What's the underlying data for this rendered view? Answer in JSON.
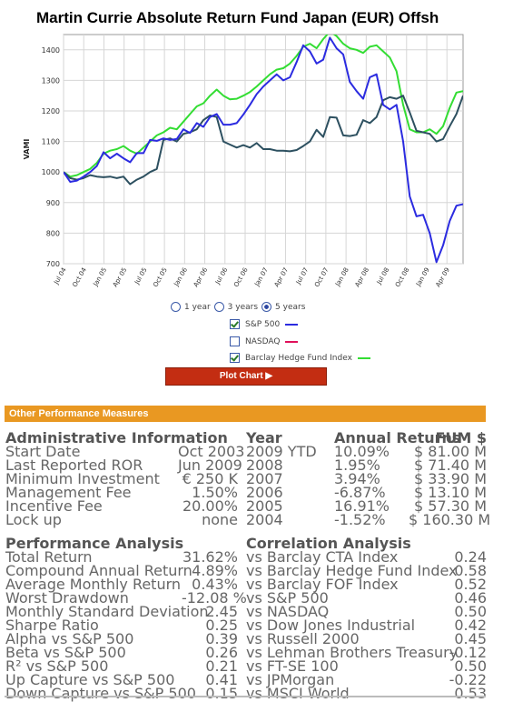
{
  "title": "Martin Currie Absolute Return Fund Japan (EUR) Offsh",
  "chart_data": {
    "type": "line",
    "ylabel": "VAMI",
    "ylim": [
      700,
      1450
    ],
    "yticks": [
      700,
      800,
      900,
      1000,
      1100,
      1200,
      1300,
      1400
    ],
    "xlabels": [
      "Jul 04",
      "Oct 04",
      "Jan 05",
      "Apr 05",
      "Jul 05",
      "Oct 05",
      "Jan 06",
      "Apr 06",
      "Jul 06",
      "Oct 06",
      "Jan 07",
      "Apr 07",
      "Jul 07",
      "Oct 07",
      "Jan 08",
      "Apr 08",
      "Jul 08",
      "Oct 08",
      "Jan 09",
      "Apr 09"
    ],
    "grid": true,
    "series": [
      {
        "name": "S&P 500",
        "color": "#2b2be0",
        "values": [
          1000,
          968,
          972,
          985,
          1000,
          1020,
          1065,
          1045,
          1060,
          1045,
          1032,
          1062,
          1062,
          1105,
          1102,
          1110,
          1105,
          1108,
          1140,
          1128,
          1160,
          1148,
          1180,
          1190,
          1155,
          1155,
          1160,
          1188,
          1220,
          1255,
          1280,
          1300,
          1320,
          1300,
          1310,
          1360,
          1415,
          1395,
          1355,
          1368,
          1440,
          1405,
          1385,
          1295,
          1265,
          1240,
          1310,
          1320,
          1220,
          1205,
          1220,
          1100,
          920,
          855,
          860,
          800,
          705,
          760,
          840,
          890,
          895
        ]
      },
      {
        "name": "Barclay Hedge Fund Index",
        "color": "#33dd33",
        "values": [
          1000,
          985,
          990,
          1000,
          1010,
          1030,
          1060,
          1070,
          1075,
          1085,
          1070,
          1060,
          1080,
          1100,
          1120,
          1130,
          1145,
          1140,
          1165,
          1190,
          1215,
          1225,
          1250,
          1270,
          1250,
          1238,
          1240,
          1250,
          1262,
          1280,
          1300,
          1320,
          1335,
          1340,
          1355,
          1380,
          1410,
          1420,
          1405,
          1435,
          1460,
          1445,
          1420,
          1405,
          1400,
          1390,
          1410,
          1415,
          1395,
          1375,
          1330,
          1220,
          1140,
          1130,
          1130,
          1140,
          1125,
          1150,
          1210,
          1260,
          1265
        ]
      },
      {
        "name": "Martin Currie Absolute Return Fund Japan (EUR) Offsh",
        "color": "#2d5060",
        "values": [
          1000,
          980,
          975,
          980,
          990,
          985,
          983,
          985,
          980,
          985,
          960,
          975,
          985,
          1000,
          1010,
          1105,
          1110,
          1100,
          1125,
          1130,
          1140,
          1170,
          1185,
          1180,
          1100,
          1090,
          1080,
          1088,
          1080,
          1095,
          1075,
          1075,
          1070,
          1070,
          1068,
          1072,
          1085,
          1100,
          1138,
          1115,
          1180,
          1178,
          1120,
          1118,
          1122,
          1170,
          1160,
          1180,
          1235,
          1245,
          1240,
          1250,
          1195,
          1135,
          1130,
          1125,
          1100,
          1108,
          1150,
          1190,
          1250
        ]
      }
    ]
  },
  "period": {
    "opt1": "1 year",
    "opt2": "3 years",
    "opt3": "5 years"
  },
  "legend": [
    {
      "label": "S&P 500",
      "checked": true,
      "color": "#2b2be0"
    },
    {
      "label": "NASDAQ",
      "checked": false,
      "color": "#e0105a"
    },
    {
      "label": "Barclay Hedge Fund Index",
      "checked": true,
      "color": "#33dd33"
    }
  ],
  "plot_button": "Plot Chart ▶",
  "perf": {
    "heading": "Other Performance Measures",
    "admin_header": "Administrative Information",
    "year_header": "Year",
    "annual_header": "Annual Returns",
    "fum_header": "FUM $",
    "admin_rows": [
      {
        "label": "Start Date",
        "value": "Oct 2003"
      },
      {
        "label": "Last Reported ROR",
        "value": "Jun 2009"
      },
      {
        "label": "Minimum Investment",
        "value": "€ 250 K"
      },
      {
        "label": "Management Fee",
        "value": "1.50%"
      },
      {
        "label": "Incentive Fee",
        "value": "20.00%"
      },
      {
        "label": "Lock up",
        "value": "none"
      }
    ],
    "year_rows": [
      {
        "year": "2009 YTD",
        "ret": "10.09%",
        "fum": "$ 81.00 M"
      },
      {
        "year": "2008",
        "ret": "1.95%",
        "fum": "$ 71.40 M"
      },
      {
        "year": "2007",
        "ret": "3.94%",
        "fum": "$ 33.90 M"
      },
      {
        "year": "2006",
        "ret": "-6.87%",
        "fum": "$ 13.10 M"
      },
      {
        "year": "2005",
        "ret": "16.91%",
        "fum": "$ 57.30 M"
      },
      {
        "year": "2004",
        "ret": "-1.52%",
        "fum": "$ 160.30 M"
      }
    ],
    "pa_header": "Performance Analysis",
    "ca_header": "Correlation Analysis",
    "pa_rows": [
      {
        "label": "Total Return",
        "value": "31.62%"
      },
      {
        "label": "Compound Annual Return",
        "value": "4.89%"
      },
      {
        "label": "Average Monthly Return",
        "value": "0.43%"
      },
      {
        "label": "Worst Drawdown",
        "value": "-12.08 %"
      },
      {
        "label": "Monthly Standard Deviation",
        "value": "2.45"
      },
      {
        "label": "Sharpe Ratio",
        "value": "0.25"
      },
      {
        "label": "Alpha vs S&P 500",
        "value": "0.39"
      },
      {
        "label": "Beta vs S&P 500",
        "value": "0.26"
      },
      {
        "label": "R² vs S&P 500",
        "value": "0.21"
      },
      {
        "label": "Up Capture vs S&P 500",
        "value": "0.41"
      },
      {
        "label": "Down Capture vs S&P 500",
        "value": "0.15"
      }
    ],
    "ca_rows": [
      {
        "label": "vs Barclay CTA Index",
        "value": "0.24"
      },
      {
        "label": "vs Barclay Hedge Fund Index",
        "value": "0.58"
      },
      {
        "label": "vs Barclay FOF Index",
        "value": "0.52"
      },
      {
        "label": "vs S&P 500",
        "value": "0.46"
      },
      {
        "label": "vs NASDAQ",
        "value": "0.50"
      },
      {
        "label": "vs Dow Jones Industrial",
        "value": "0.42"
      },
      {
        "label": "vs Russell 2000",
        "value": "0.45"
      },
      {
        "label": "vs Lehman Brothers Treasury",
        "value": "-0.12"
      },
      {
        "label": "vs FT-SE 100",
        "value": "0.50"
      },
      {
        "label": "vs JPMorgan",
        "value": "-0.22"
      },
      {
        "label": "vs MSCI World",
        "value": "0.53"
      }
    ]
  }
}
